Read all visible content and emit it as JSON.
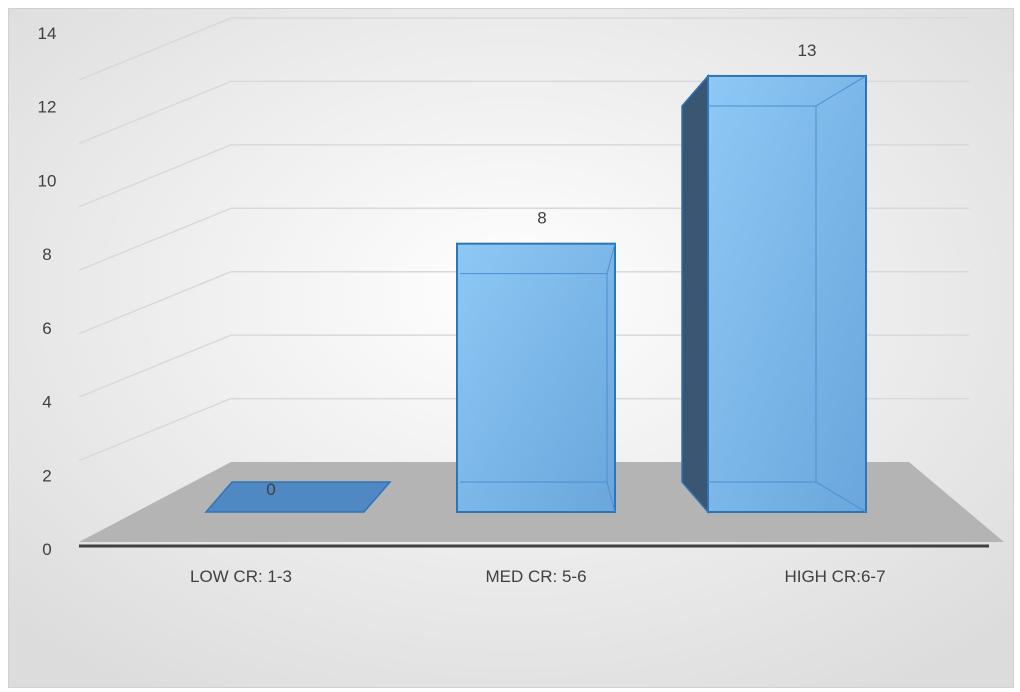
{
  "chart_data": {
    "type": "bar",
    "style": "3d-column",
    "categories": [
      "LOW CR: 1-3",
      "MED CR: 5-6",
      "HIGH CR:6-7"
    ],
    "values": [
      0,
      8,
      13
    ],
    "data_labels": [
      "0",
      "8",
      "13"
    ],
    "y_ticks": [
      "0",
      "2",
      "4",
      "6",
      "8",
      "10",
      "12",
      "14"
    ],
    "ylim": [
      0,
      14
    ],
    "grid": true,
    "legend": "none",
    "colors": {
      "bar_front": "#6aaee6",
      "bar_front_light": "#8ec8f5",
      "bar_edge": "#2e75b6",
      "bar_side": "#3a5672",
      "floor": "#b4b4b4",
      "background_center": "#ffffff",
      "background_edge": "#dedede",
      "axis_line": "#404040",
      "gridline": "#d9d9d9",
      "text": "#404040"
    }
  }
}
